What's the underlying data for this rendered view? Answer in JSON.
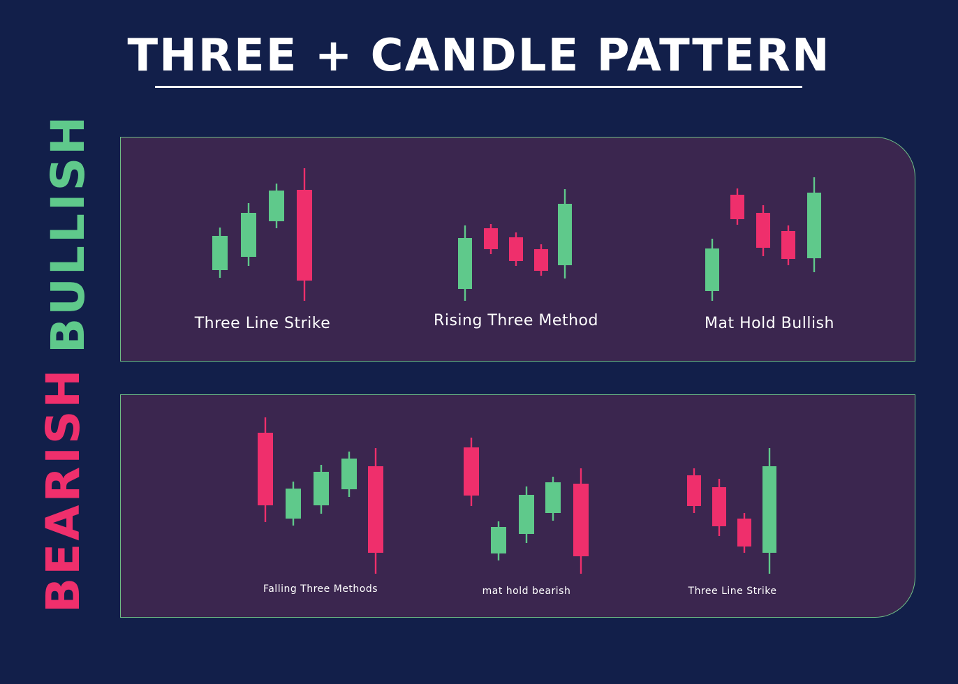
{
  "title": "THREE + CANDLE PATTERN",
  "colors": {
    "background": "#121f4a",
    "panel": "#3b264f",
    "bullish": "#5fc98b",
    "bearish": "#ef2f6c",
    "text": "#ffffff"
  },
  "sections": [
    {
      "label": "BULLISH",
      "patterns": [
        {
          "name": "Three Line Strike",
          "candles": [
            "bullish",
            "bullish",
            "bullish",
            "bearish"
          ]
        },
        {
          "name": "Rising Three Method",
          "candles": [
            "bullish",
            "bearish",
            "bearish",
            "bearish",
            "bullish"
          ]
        },
        {
          "name": "Mat Hold Bullish",
          "candles": [
            "bullish",
            "bearish",
            "bearish",
            "bearish",
            "bullish"
          ]
        }
      ]
    },
    {
      "label": "BEARISH",
      "patterns": [
        {
          "name": "Falling Three Methods",
          "candles": [
            "bearish",
            "bullish",
            "bullish",
            "bullish",
            "bearish"
          ]
        },
        {
          "name": "mat hold bearish",
          "candles": [
            "bearish",
            "bullish",
            "bullish",
            "bullish",
            "bearish"
          ]
        },
        {
          "name": "Three Line Strike",
          "candles": [
            "bearish",
            "bearish",
            "bearish",
            "bullish"
          ]
        }
      ]
    }
  ]
}
